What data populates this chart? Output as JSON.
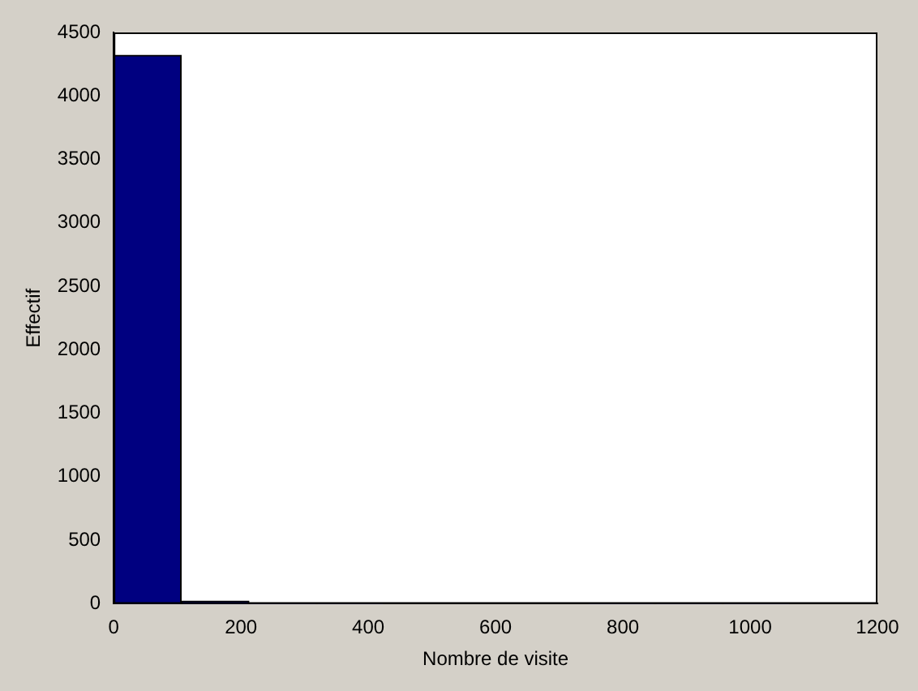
{
  "chart_data": {
    "type": "histogram",
    "xlabel": "Nombre de visite",
    "ylabel": "Effectif",
    "bins": [
      0,
      106,
      213,
      319,
      425,
      532,
      638,
      744,
      851,
      957,
      1063
    ],
    "values": [
      4320,
      20,
      5,
      5,
      0,
      0,
      0,
      2,
      2,
      2
    ],
    "color": "#000080",
    "xlim": [
      0,
      1200
    ],
    "xticks": [
      0,
      200,
      400,
      600,
      800,
      1000,
      1200
    ],
    "ylim": [
      0,
      4500
    ],
    "yticks": [
      0,
      500,
      1000,
      1500,
      2000,
      2500,
      3000,
      3500,
      4000,
      4500
    ],
    "grid": false,
    "legend": false
  }
}
